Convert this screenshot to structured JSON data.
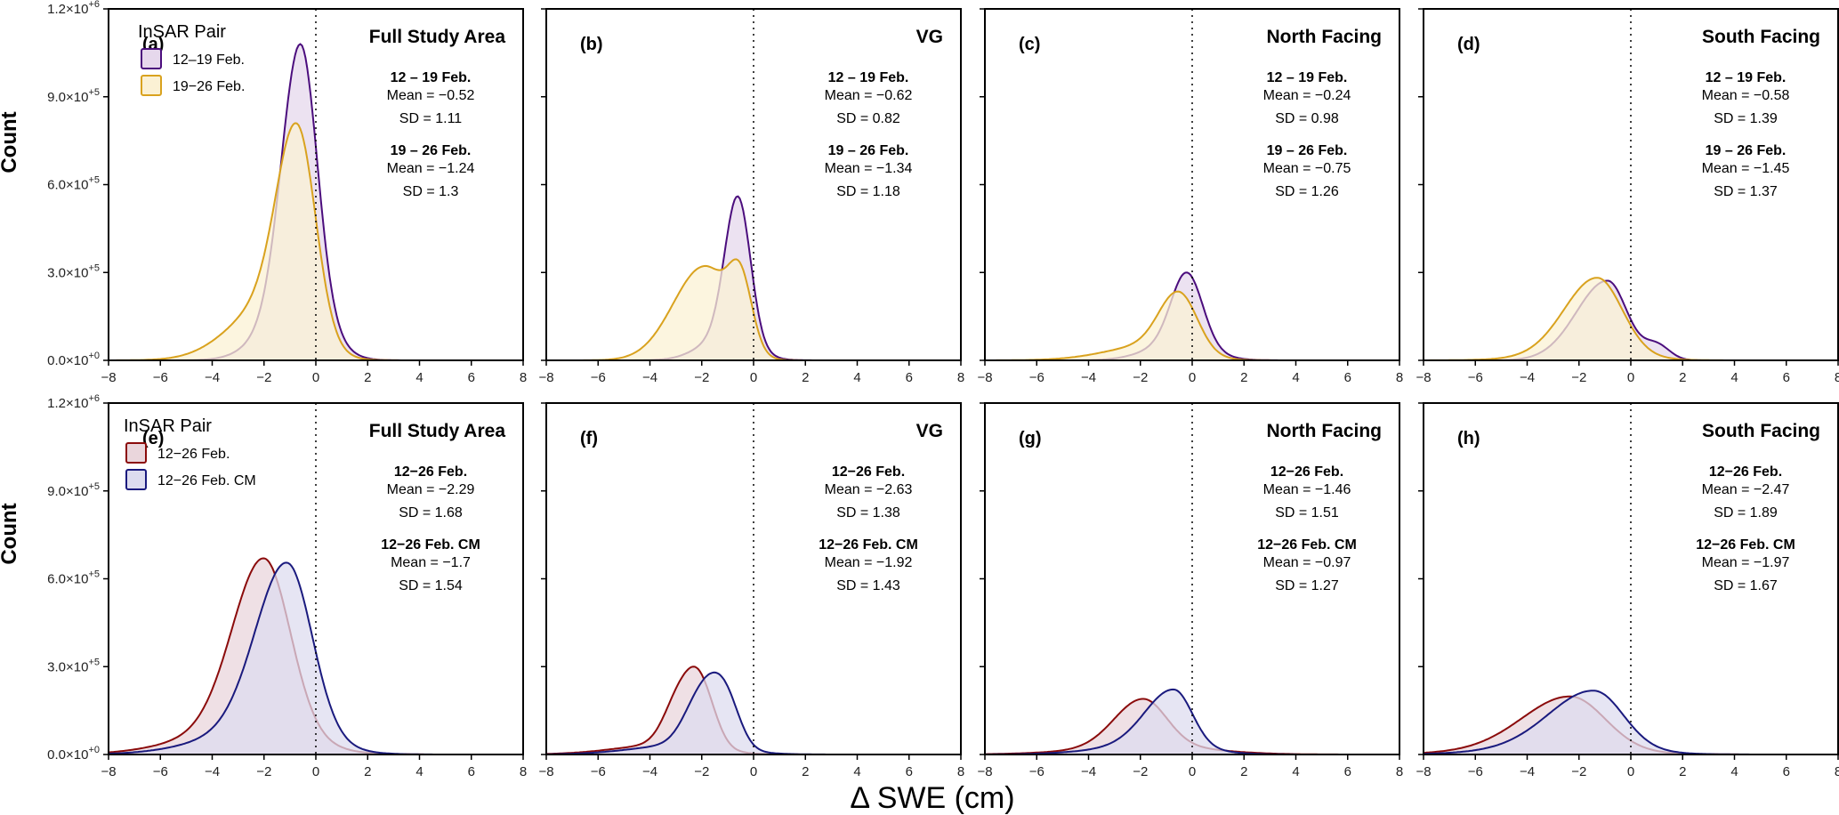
{
  "colors": {
    "purple": "#4b0d7d",
    "purple_fill": "#e6d8ec",
    "gold": "#d9a21e",
    "gold_fill": "#fbf1d4",
    "red": "#8b0b0b",
    "red_fill": "#ead6dc",
    "navy": "#1a1a7e",
    "navy_fill": "#dddcef"
  },
  "axes": {
    "xlabel": "Δ SWE (cm)",
    "ylabel": "Count"
  },
  "chart_data": {
    "type": "area",
    "subtype": "density (filled kernel density) small multiples, 2 rows x 4 columns",
    "xlim": [
      -8,
      8
    ],
    "ylim": [
      0,
      1200000
    ],
    "xticks": [
      -8,
      -6,
      -4,
      -2,
      0,
      2,
      4,
      6,
      8
    ],
    "xtick_labels": [
      "−8",
      "−6",
      "−4",
      "−2",
      "0",
      "2",
      "4",
      "6",
      "8"
    ],
    "yticks": [
      {
        "mantissa": "0.0",
        "exp": "+0",
        "value": 0
      },
      {
        "mantissa": "3.0",
        "exp": "+5",
        "value": 300000
      },
      {
        "mantissa": "6.0",
        "exp": "+5",
        "value": 600000
      },
      {
        "mantissa": "9.0",
        "exp": "+5",
        "value": 900000
      },
      {
        "mantissa": "1.2",
        "exp": "+6",
        "value": 1200000
      }
    ],
    "y_tick_base": "×10",
    "reference_line_x": 0,
    "legends": [
      {
        "title": "InSAR Pair",
        "items": [
          {
            "label": "12–19 Feb.",
            "color_key": "purple"
          },
          {
            "label": "19−26 Feb.",
            "color_key": "gold"
          }
        ]
      },
      {
        "title": "InSAR Pair",
        "items": [
          {
            "label": "12−26 Feb.",
            "color_key": "red"
          },
          {
            "label": "12−26 Feb. CM",
            "color_key": "navy"
          }
        ]
      }
    ],
    "panels": [
      {
        "label": "(a)",
        "title": "Full Study Area",
        "stats": [
          {
            "head": "12 – 19 Feb.",
            "mean": "Mean = −0.52",
            "sd": "SD = 1.11"
          },
          {
            "head": "19 – 26 Feb.",
            "mean": "Mean = −1.24",
            "sd": "SD = 1.3"
          }
        ],
        "series": [
          {
            "name": "12–19 Feb.",
            "color_key": "purple",
            "fill_key": "purple_fill",
            "peak": 1080000,
            "comps": [
              [
                -0.6,
                0.7,
                0.63,
                0.8
              ],
              [
                -0.6,
                1.25,
                1.0,
                0.2
              ]
            ]
          },
          {
            "name": "19−26 Feb.",
            "color_key": "gold",
            "fill_key": "gold_fill",
            "peak": 810000,
            "comps": [
              [
                -0.7,
                0.78,
                0.7,
                0.8
              ],
              [
                -1.6,
                1.6,
                1.25,
                0.25
              ]
            ]
          }
        ]
      },
      {
        "label": "(b)",
        "title": "VG",
        "stats": [
          {
            "head": "12 – 19 Feb.",
            "mean": "Mean = −0.62",
            "sd": "SD = 0.82"
          },
          {
            "head": "19 – 26 Feb.",
            "mean": "Mean = −1.34",
            "sd": "SD = 1.18"
          }
        ],
        "series": [
          {
            "name": "12–19 Feb.",
            "color_key": "purple",
            "fill_key": "purple_fill",
            "peak": 560000,
            "comps": [
              [
                -0.6,
                0.5,
                0.48,
                0.85
              ],
              [
                -1.0,
                1.0,
                0.9,
                0.15
              ]
            ]
          },
          {
            "name": "19−26 Feb.",
            "color_key": "gold",
            "fill_key": "gold_fill",
            "peak": 345000,
            "comps": [
              [
                -0.5,
                0.45,
                0.45,
                0.45
              ],
              [
                -1.9,
                1.2,
                0.95,
                0.65
              ]
            ]
          }
        ]
      },
      {
        "label": "(c)",
        "title": "North Facing",
        "stats": [
          {
            "head": "12 – 19 Feb.",
            "mean": "Mean = −0.24",
            "sd": "SD = 0.98"
          },
          {
            "head": "19 – 26 Feb.",
            "mean": "Mean = −0.75",
            "sd": "SD = 1.26"
          }
        ],
        "series": [
          {
            "name": "12–19 Feb.",
            "color_key": "purple",
            "fill_key": "purple_fill",
            "peak": 300000,
            "comps": [
              [
                -0.2,
                0.6,
                0.6,
                0.8
              ],
              [
                -0.5,
                1.2,
                1.1,
                0.2
              ]
            ]
          },
          {
            "name": "19−26 Feb.",
            "color_key": "gold",
            "fill_key": "gold_fill",
            "peak": 235000,
            "comps": [
              [
                -0.5,
                0.75,
                0.7,
                0.8
              ],
              [
                -1.4,
                1.8,
                1.3,
                0.22
              ]
            ]
          }
        ]
      },
      {
        "label": "(d)",
        "title": "South Facing",
        "stats": [
          {
            "head": "12 – 19 Feb.",
            "mean": "Mean = −0.58",
            "sd": "SD = 1.39"
          },
          {
            "head": "19 – 26 Feb.",
            "mean": "Mean = −1.45",
            "sd": "SD = 1.37"
          }
        ],
        "series": [
          {
            "name": "12–19 Feb.",
            "color_key": "purple",
            "fill_key": "purple_fill",
            "peak": 272000,
            "comps": [
              [
                -0.9,
                1.2,
                0.75,
                0.8
              ],
              [
                1.0,
                0.5,
                0.5,
                0.15
              ]
            ]
          },
          {
            "name": "19−26 Feb.",
            "color_key": "gold",
            "fill_key": "gold_fill",
            "peak": 282000,
            "comps": [
              [
                -1.3,
                1.25,
                0.95,
                0.9
              ],
              [
                -1.3,
                2.0,
                1.5,
                0.1
              ]
            ]
          }
        ]
      },
      {
        "label": "(e)",
        "title": "Full Study Area",
        "stats": [
          {
            "head": "12−26 Feb.",
            "mean": "Mean = −2.29",
            "sd": "SD = 1.68"
          },
          {
            "head": "12−26 Feb. CM",
            "mean": "Mean = −1.7",
            "sd": "SD = 1.54"
          }
        ],
        "series": [
          {
            "name": "12−26 Feb.",
            "color_key": "red",
            "fill_key": "red_fill",
            "peak": 670000,
            "comps": [
              [
                -2.0,
                1.2,
                1.0,
                0.85
              ],
              [
                -2.3,
                2.5,
                1.8,
                0.15
              ]
            ]
          },
          {
            "name": "12−26 Feb. CM",
            "color_key": "navy",
            "fill_key": "navy_fill",
            "peak": 655000,
            "comps": [
              [
                -1.1,
                1.2,
                0.95,
                0.85
              ],
              [
                -1.6,
                2.4,
                1.7,
                0.15
              ]
            ]
          }
        ]
      },
      {
        "label": "(f)",
        "title": "VG",
        "stats": [
          {
            "head": "12−26 Feb.",
            "mean": "Mean = −2.63",
            "sd": "SD = 1.38"
          },
          {
            "head": "12−26 Feb. CM",
            "mean": "Mean = −1.92",
            "sd": "SD = 1.43"
          }
        ],
        "series": [
          {
            "name": "12−26 Feb.",
            "color_key": "red",
            "fill_key": "red_fill",
            "peak": 300000,
            "comps": [
              [
                -2.8,
                0.6,
                0.6,
                0.5
              ],
              [
                -2.0,
                0.5,
                0.55,
                0.5
              ],
              [
                -3.2,
                2.0,
                1.5,
                0.1
              ]
            ]
          },
          {
            "name": "12−26 Feb. CM",
            "color_key": "navy",
            "fill_key": "navy_fill",
            "peak": 280000,
            "comps": [
              [
                -2.0,
                0.65,
                0.6,
                0.5
              ],
              [
                -1.1,
                0.55,
                0.55,
                0.5
              ],
              [
                -2.5,
                2.0,
                1.6,
                0.1
              ]
            ]
          }
        ]
      },
      {
        "label": "(g)",
        "title": "North Facing",
        "stats": [
          {
            "head": "12−26 Feb.",
            "mean": "Mean = −1.46",
            "sd": "SD = 1.51"
          },
          {
            "head": "12−26 Feb. CM",
            "mean": "Mean = −0.97",
            "sd": "SD = 1.27"
          }
        ],
        "series": [
          {
            "name": "12−26 Feb.",
            "color_key": "red",
            "fill_key": "red_fill",
            "peak": 190000,
            "comps": [
              [
                -1.9,
                1.1,
                0.9,
                0.85
              ],
              [
                -1.5,
                2.6,
                2.2,
                0.15
              ]
            ]
          },
          {
            "name": "12−26 Feb. CM",
            "color_key": "navy",
            "fill_key": "navy_fill",
            "peak": 222000,
            "comps": [
              [
                -0.7,
                1.1,
                0.7,
                0.85
              ],
              [
                -1.2,
                2.2,
                1.6,
                0.15
              ]
            ]
          }
        ]
      },
      {
        "label": "(h)",
        "title": "South Facing",
        "stats": [
          {
            "head": "12−26 Feb.",
            "mean": "Mean = −2.47",
            "sd": "SD = 1.89"
          },
          {
            "head": "12−26 Feb. CM",
            "mean": "Mean = −1.97",
            "sd": "SD = 1.67"
          }
        ],
        "series": [
          {
            "name": "12−26 Feb.",
            "color_key": "red",
            "fill_key": "red_fill",
            "peak": 198000,
            "comps": [
              [
                -2.3,
                1.8,
                1.3,
                0.85
              ],
              [
                -3.0,
                2.6,
                2.2,
                0.15
              ]
            ]
          },
          {
            "name": "12−26 Feb. CM",
            "color_key": "navy",
            "fill_key": "navy_fill",
            "peak": 218000,
            "comps": [
              [
                -1.4,
                1.7,
                1.1,
                0.85
              ],
              [
                -2.0,
                2.6,
                2.0,
                0.15
              ]
            ]
          }
        ]
      }
    ]
  }
}
